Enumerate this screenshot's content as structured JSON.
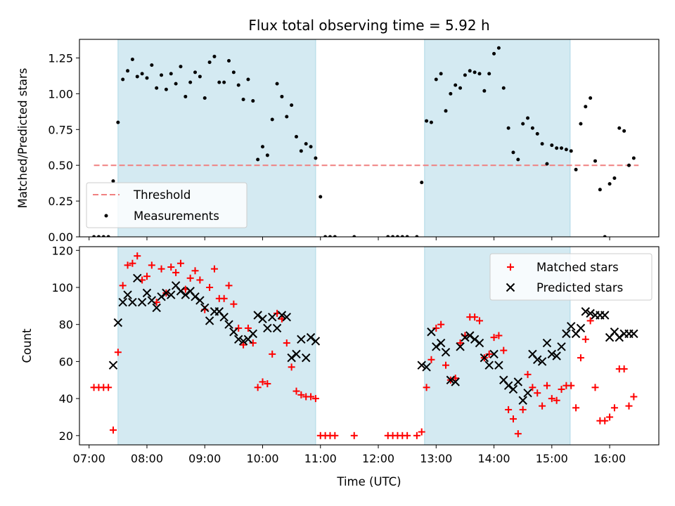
{
  "chart_data": [
    {
      "type": "scatter",
      "title": "Flux total observing time = 5.92 h",
      "ylabel": "Matched/Predicted stars",
      "xlabel": "",
      "xlim": [
        "06:50",
        "16:51"
      ],
      "ylim": [
        0,
        1.38
      ],
      "yticks": [
        0.0,
        0.25,
        0.5,
        0.75,
        1.0,
        1.25
      ],
      "ytick_labels": [
        "0.00",
        "0.25",
        "0.50",
        "0.75",
        "1.00",
        "1.25"
      ],
      "shaded_intervals": [
        [
          "07:30",
          "10:55"
        ],
        [
          "12:48",
          "15:19"
        ]
      ],
      "shade_color": "#add8e6",
      "legend_position": "lower-left",
      "threshold": {
        "name": "Threshold",
        "value": 0.5,
        "x_start": "07:05",
        "x_end": "16:30",
        "color": "#f08080"
      },
      "series": [
        {
          "name": "Measurements",
          "marker": "dot",
          "color": "#000000",
          "x": [
            "07:05",
            "07:10",
            "07:15",
            "07:20",
            "07:25",
            "07:30",
            "07:35",
            "07:40",
            "07:45",
            "07:50",
            "07:55",
            "08:00",
            "08:05",
            "08:10",
            "08:15",
            "08:20",
            "08:25",
            "08:30",
            "08:35",
            "08:40",
            "08:45",
            "08:50",
            "08:55",
            "09:00",
            "09:05",
            "09:10",
            "09:15",
            "09:20",
            "09:25",
            "09:30",
            "09:35",
            "09:40",
            "09:45",
            "09:50",
            "09:55",
            "10:00",
            "10:05",
            "10:10",
            "10:15",
            "10:20",
            "10:25",
            "10:30",
            "10:35",
            "10:40",
            "10:45",
            "10:50",
            "10:55",
            "11:00",
            "11:05",
            "11:10",
            "11:15",
            "11:35",
            "12:10",
            "12:15",
            "12:20",
            "12:25",
            "12:30",
            "12:40",
            "12:45",
            "12:50",
            "12:55",
            "13:00",
            "13:05",
            "13:10",
            "13:15",
            "13:20",
            "13:25",
            "13:30",
            "13:35",
            "13:40",
            "13:45",
            "13:50",
            "13:55",
            "14:00",
            "14:05",
            "14:10",
            "14:15",
            "14:20",
            "14:25",
            "14:30",
            "14:35",
            "14:40",
            "14:45",
            "14:50",
            "14:55",
            "15:00",
            "15:05",
            "15:10",
            "15:15",
            "15:20",
            "15:25",
            "15:30",
            "15:35",
            "15:40",
            "15:45",
            "15:50",
            "15:55",
            "16:00",
            "16:05",
            "16:10",
            "16:15",
            "16:20",
            "16:25"
          ],
          "y": [
            0.0,
            0.0,
            0.0,
            0.0,
            0.39,
            0.8,
            1.1,
            1.16,
            1.24,
            1.12,
            1.14,
            1.11,
            1.2,
            1.04,
            1.13,
            1.03,
            1.14,
            1.07,
            1.19,
            0.98,
            1.08,
            1.15,
            1.12,
            0.97,
            1.22,
            1.26,
            1.08,
            1.08,
            1.23,
            1.15,
            1.06,
            0.96,
            1.1,
            0.95,
            0.54,
            0.63,
            0.57,
            0.82,
            1.07,
            0.98,
            0.84,
            0.92,
            0.7,
            0.6,
            0.65,
            0.63,
            0.55,
            0.28,
            0.0,
            0.0,
            0.0,
            0.0,
            0.0,
            0.0,
            0.0,
            0.0,
            0.0,
            0.0,
            0.38,
            0.81,
            0.8,
            1.1,
            1.14,
            0.88,
            1.0,
            1.06,
            1.04,
            1.13,
            1.16,
            1.15,
            1.14,
            1.02,
            1.14,
            1.28,
            1.32,
            1.04,
            0.76,
            0.59,
            0.54,
            0.79,
            0.83,
            0.76,
            0.72,
            0.65,
            0.51,
            0.64,
            0.62,
            0.62,
            0.61,
            0.6,
            0.47,
            0.79,
            0.91,
            0.97,
            0.53,
            0.33,
            0.0,
            0.37,
            0.41,
            0.76,
            0.74,
            0.5,
            0.55
          ]
        }
      ]
    },
    {
      "type": "scatter",
      "title": "",
      "ylabel": "Count",
      "xlabel": "Time (UTC)",
      "xlim": [
        "06:50",
        "16:51"
      ],
      "xticks": [
        "07:00",
        "08:00",
        "09:00",
        "10:00",
        "11:00",
        "12:00",
        "13:00",
        "14:00",
        "15:00",
        "16:00"
      ],
      "ylim": [
        15,
        122
      ],
      "yticks": [
        20,
        40,
        60,
        80,
        100,
        120
      ],
      "shaded_intervals": [
        [
          "07:30",
          "10:55"
        ],
        [
          "12:48",
          "15:19"
        ]
      ],
      "shade_color": "#add8e6",
      "legend_position": "top-right",
      "series": [
        {
          "name": "Matched stars",
          "marker": "plus",
          "color": "#ff0000",
          "x": [
            "07:05",
            "07:10",
            "07:15",
            "07:20",
            "07:25",
            "07:30",
            "07:35",
            "07:40",
            "07:45",
            "07:50",
            "07:55",
            "08:00",
            "08:05",
            "08:10",
            "08:15",
            "08:20",
            "08:25",
            "08:30",
            "08:35",
            "08:40",
            "08:45",
            "08:50",
            "08:55",
            "09:00",
            "09:05",
            "09:10",
            "09:15",
            "09:20",
            "09:25",
            "09:30",
            "09:35",
            "09:40",
            "09:45",
            "09:50",
            "09:55",
            "10:00",
            "10:05",
            "10:10",
            "10:15",
            "10:20",
            "10:25",
            "10:30",
            "10:35",
            "10:40",
            "10:45",
            "10:50",
            "10:55",
            "11:00",
            "11:05",
            "11:10",
            "11:15",
            "11:35",
            "12:10",
            "12:15",
            "12:20",
            "12:25",
            "12:30",
            "12:40",
            "12:45",
            "12:50",
            "12:55",
            "13:00",
            "13:05",
            "13:10",
            "13:15",
            "13:20",
            "13:25",
            "13:30",
            "13:35",
            "13:40",
            "13:45",
            "13:50",
            "13:55",
            "14:00",
            "14:05",
            "14:10",
            "14:15",
            "14:20",
            "14:25",
            "14:30",
            "14:35",
            "14:40",
            "14:45",
            "14:50",
            "14:55",
            "15:00",
            "15:05",
            "15:10",
            "15:15",
            "15:20",
            "15:25",
            "15:30",
            "15:35",
            "15:40",
            "15:45",
            "15:50",
            "15:55",
            "16:00",
            "16:05",
            "16:10",
            "16:15",
            "16:20",
            "16:25"
          ],
          "y": [
            46,
            46,
            46,
            46,
            23,
            65,
            101,
            112,
            113,
            117,
            104,
            106,
            112,
            92,
            110,
            97,
            111,
            108,
            113,
            99,
            105,
            109,
            104,
            88,
            100,
            110,
            94,
            94,
            101,
            91,
            78,
            69,
            78,
            70,
            46,
            49,
            48,
            64,
            86,
            83,
            70,
            57,
            44,
            42,
            41,
            41,
            40,
            20,
            20,
            20,
            20,
            20,
            20,
            20,
            20,
            20,
            20,
            20,
            22,
            46,
            61,
            78,
            80,
            58,
            50,
            51,
            70,
            74,
            84,
            84,
            82,
            62,
            64,
            73,
            74,
            66,
            34,
            29,
            21,
            34,
            53,
            46,
            43,
            36,
            47,
            40,
            39,
            45,
            47,
            47,
            35,
            62,
            72,
            82,
            46,
            28,
            28,
            30,
            35,
            56,
            56,
            36,
            41
          ]
        },
        {
          "name": "Predicted stars",
          "marker": "x",
          "color": "#000000",
          "x": [
            "07:25",
            "07:30",
            "07:35",
            "07:40",
            "07:45",
            "07:50",
            "07:55",
            "08:00",
            "08:05",
            "08:10",
            "08:15",
            "08:20",
            "08:25",
            "08:30",
            "08:35",
            "08:40",
            "08:45",
            "08:50",
            "08:55",
            "09:00",
            "09:05",
            "09:10",
            "09:15",
            "09:20",
            "09:25",
            "09:30",
            "09:35",
            "09:40",
            "09:45",
            "09:50",
            "09:55",
            "10:00",
            "10:05",
            "10:10",
            "10:15",
            "10:20",
            "10:25",
            "10:30",
            "10:35",
            "10:40",
            "10:45",
            "10:50",
            "10:55",
            "12:45",
            "12:50",
            "12:55",
            "13:00",
            "13:05",
            "13:10",
            "13:15",
            "13:20",
            "13:25",
            "13:30",
            "13:35",
            "13:40",
            "13:45",
            "13:50",
            "13:55",
            "14:00",
            "14:05",
            "14:10",
            "14:15",
            "14:20",
            "14:25",
            "14:30",
            "14:35",
            "14:40",
            "14:45",
            "14:50",
            "14:55",
            "15:00",
            "15:05",
            "15:10",
            "15:15",
            "15:20",
            "15:25",
            "15:30",
            "15:35",
            "15:40",
            "15:45",
            "15:50",
            "15:55",
            "16:00",
            "16:05",
            "16:10",
            "16:15",
            "16:20",
            "16:25"
          ],
          "y": [
            58,
            81,
            92,
            96,
            92,
            105,
            92,
            97,
            93,
            89,
            95,
            97,
            96,
            101,
            98,
            96,
            98,
            95,
            93,
            89,
            82,
            87,
            87,
            84,
            80,
            76,
            72,
            71,
            72,
            75,
            85,
            83,
            78,
            84,
            78,
            85,
            84,
            62,
            64,
            72,
            62,
            73,
            71,
            58,
            57,
            76,
            68,
            70,
            65,
            50,
            49,
            68,
            73,
            74,
            72,
            70,
            62,
            58,
            64,
            58,
            50,
            47,
            45,
            49,
            39,
            43,
            64,
            61,
            60,
            70,
            64,
            63,
            68,
            75,
            79,
            75,
            78,
            87,
            86,
            85,
            85,
            85,
            73,
            76,
            73,
            75,
            75,
            75
          ]
        }
      ]
    }
  ]
}
